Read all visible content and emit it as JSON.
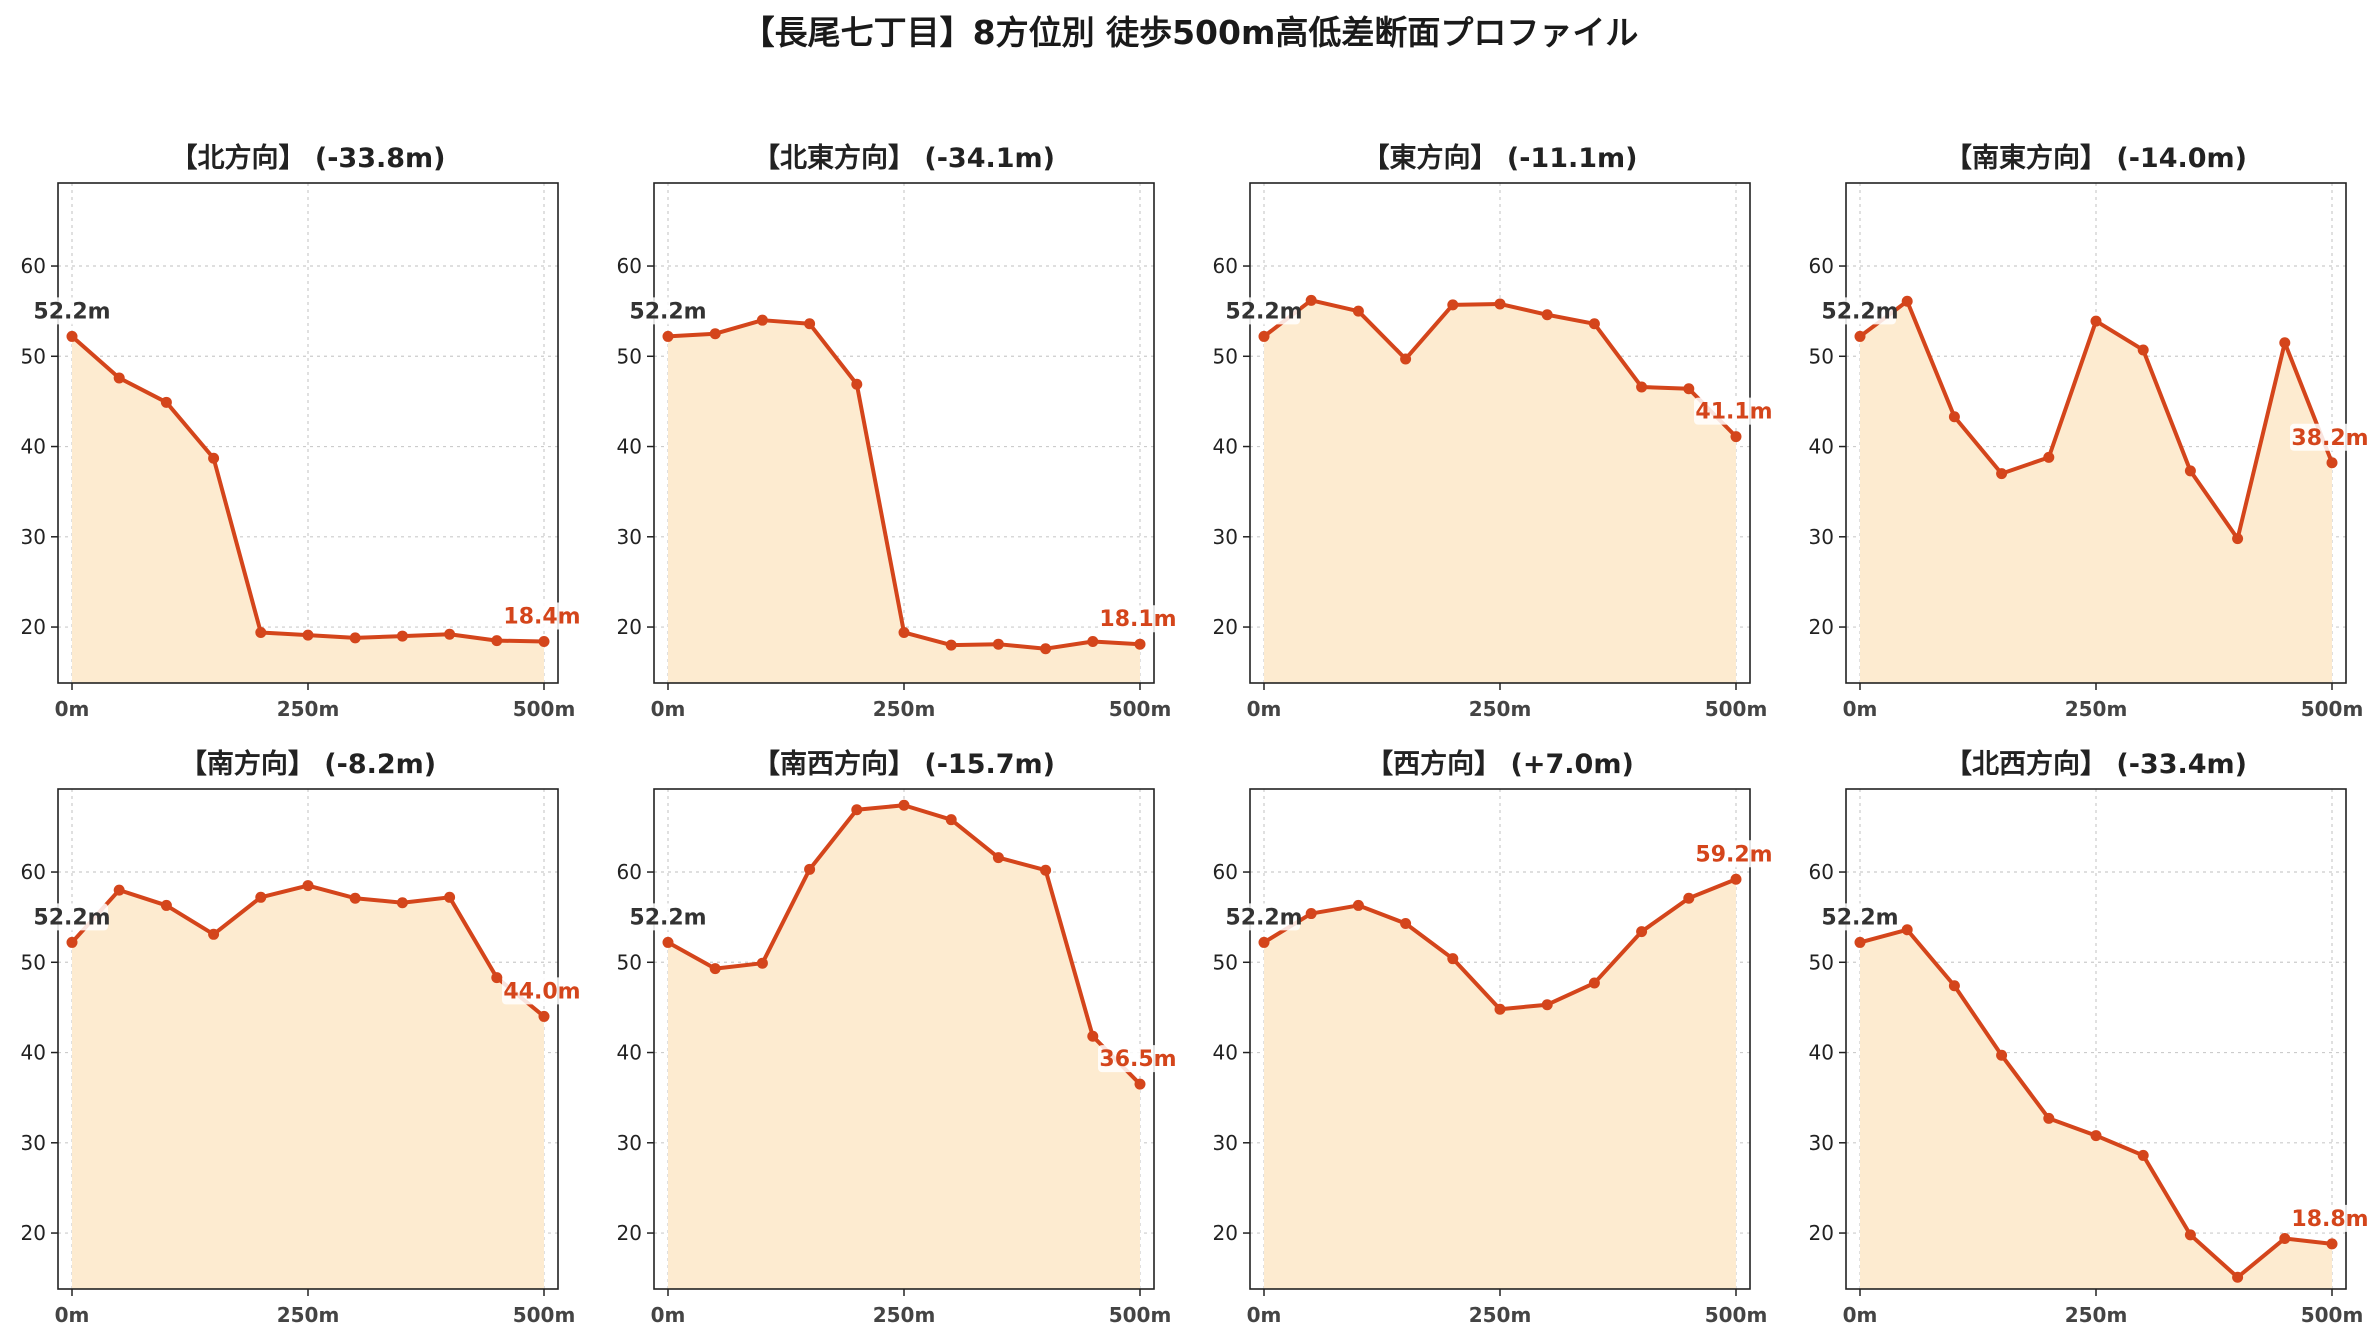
{
  "title": "【長尾七丁目】8方位別 徒歩500m高低差断面プロファイル",
  "colors": {
    "line": "#d4451b",
    "fill": "#fdebd0",
    "grid": "#cccccc",
    "axis": "#222222"
  },
  "chart_data": [
    {
      "type": "area",
      "title": "【北方向】 (-33.8m)",
      "start_label": "52.2m",
      "end_label": "18.4m",
      "x": [
        0,
        50,
        100,
        150,
        200,
        250,
        300,
        350,
        400,
        450,
        500
      ],
      "values": [
        52.2,
        47.6,
        44.9,
        38.7,
        19.4,
        19.1,
        18.8,
        19.0,
        19.2,
        18.5,
        18.4
      ],
      "xticks": [
        "0m",
        "250m",
        "500m"
      ],
      "xlim": [
        0,
        500
      ],
      "ylim": [
        13.8,
        69.2
      ],
      "yticks": [
        20,
        30,
        40,
        50,
        60
      ],
      "grid": true
    },
    {
      "type": "area",
      "title": "【北東方向】 (-34.1m)",
      "start_label": "52.2m",
      "end_label": "18.1m",
      "x": [
        0,
        50,
        100,
        150,
        200,
        250,
        300,
        350,
        400,
        450,
        500
      ],
      "values": [
        52.2,
        52.5,
        54.0,
        53.6,
        46.9,
        19.4,
        18.0,
        18.1,
        17.6,
        18.4,
        18.1
      ],
      "xticks": [
        "0m",
        "250m",
        "500m"
      ],
      "xlim": [
        0,
        500
      ],
      "ylim": [
        13.8,
        69.2
      ],
      "yticks": [
        20,
        30,
        40,
        50,
        60
      ],
      "grid": true
    },
    {
      "type": "area",
      "title": "【東方向】 (-11.1m)",
      "start_label": "52.2m",
      "end_label": "41.1m",
      "x": [
        0,
        50,
        100,
        150,
        200,
        250,
        300,
        350,
        400,
        450,
        500
      ],
      "values": [
        52.2,
        56.2,
        55.0,
        49.7,
        55.7,
        55.8,
        54.6,
        53.6,
        46.6,
        46.4,
        41.1
      ],
      "xticks": [
        "0m",
        "250m",
        "500m"
      ],
      "xlim": [
        0,
        500
      ],
      "ylim": [
        13.8,
        69.2
      ],
      "yticks": [
        20,
        30,
        40,
        50,
        60
      ],
      "grid": true
    },
    {
      "type": "area",
      "title": "【南東方向】 (-14.0m)",
      "start_label": "52.2m",
      "end_label": "38.2m",
      "x": [
        0,
        50,
        100,
        150,
        200,
        250,
        300,
        350,
        400,
        450,
        500
      ],
      "values": [
        52.2,
        56.1,
        43.3,
        37.0,
        38.8,
        53.9,
        50.7,
        37.3,
        29.8,
        51.5,
        38.2
      ],
      "xticks": [
        "0m",
        "250m",
        "500m"
      ],
      "xlim": [
        0,
        500
      ],
      "ylim": [
        13.8,
        69.2
      ],
      "yticks": [
        20,
        30,
        40,
        50,
        60
      ],
      "grid": true
    },
    {
      "type": "area",
      "title": "【南方向】 (-8.2m)",
      "start_label": "52.2m",
      "end_label": "44.0m",
      "x": [
        0,
        50,
        100,
        150,
        200,
        250,
        300,
        350,
        400,
        450,
        500
      ],
      "values": [
        52.2,
        58.0,
        56.3,
        53.1,
        57.2,
        58.5,
        57.1,
        56.6,
        57.2,
        48.3,
        44.0
      ],
      "xticks": [
        "0m",
        "250m",
        "500m"
      ],
      "xlim": [
        0,
        500
      ],
      "ylim": [
        13.8,
        69.2
      ],
      "yticks": [
        20,
        30,
        40,
        50,
        60
      ],
      "grid": true
    },
    {
      "type": "area",
      "title": "【南西方向】 (-15.7m)",
      "start_label": "52.2m",
      "end_label": "36.5m",
      "x": [
        0,
        50,
        100,
        150,
        200,
        250,
        300,
        350,
        400,
        450,
        500
      ],
      "values": [
        52.2,
        49.3,
        49.9,
        60.3,
        66.9,
        67.4,
        65.8,
        61.6,
        60.2,
        41.8,
        36.5
      ],
      "xticks": [
        "0m",
        "250m",
        "500m"
      ],
      "xlim": [
        0,
        500
      ],
      "ylim": [
        13.8,
        69.2
      ],
      "yticks": [
        20,
        30,
        40,
        50,
        60
      ],
      "grid": true
    },
    {
      "type": "area",
      "title": "【西方向】 (+7.0m)",
      "start_label": "52.2m",
      "end_label": "59.2m",
      "x": [
        0,
        50,
        100,
        150,
        200,
        250,
        300,
        350,
        400,
        450,
        500
      ],
      "values": [
        52.2,
        55.4,
        56.3,
        54.3,
        50.4,
        44.8,
        45.3,
        47.7,
        53.4,
        57.1,
        59.2
      ],
      "xticks": [
        "0m",
        "250m",
        "500m"
      ],
      "xlim": [
        0,
        500
      ],
      "ylim": [
        13.8,
        69.2
      ],
      "yticks": [
        20,
        30,
        40,
        50,
        60
      ],
      "grid": true
    },
    {
      "type": "area",
      "title": "【北西方向】 (-33.4m)",
      "start_label": "52.2m",
      "end_label": "18.8m",
      "x": [
        0,
        50,
        100,
        150,
        200,
        250,
        300,
        350,
        400,
        450,
        500
      ],
      "values": [
        52.2,
        53.6,
        47.4,
        39.7,
        32.7,
        30.8,
        28.6,
        19.8,
        15.1,
        19.4,
        18.8
      ],
      "xticks": [
        "0m",
        "250m",
        "500m"
      ],
      "xlim": [
        0,
        500
      ],
      "ylim": [
        13.8,
        69.2
      ],
      "yticks": [
        20,
        30,
        40,
        50,
        60
      ],
      "grid": true
    }
  ]
}
